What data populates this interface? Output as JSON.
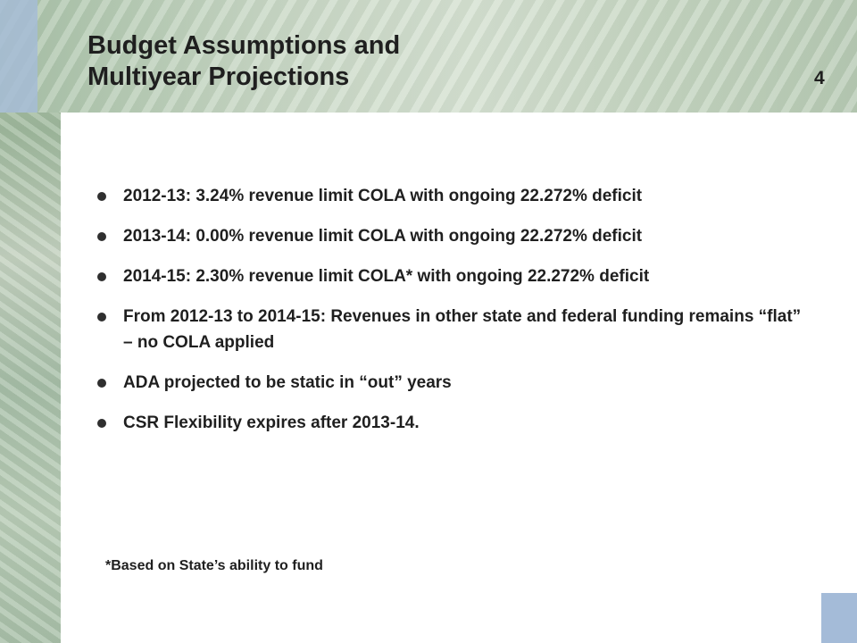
{
  "slide": {
    "title_line1": "Budget Assumptions and",
    "title_line2": "Multiyear Projections",
    "number": "4"
  },
  "bullets": [
    "2012-13:  3.24% revenue limit COLA with ongoing 22.272% deficit",
    "2013-14:   0.00% revenue limit COLA with ongoing 22.272% deficit",
    "2014-15:  2.30% revenue limit COLA* with ongoing 22.272% deficit",
    "From 2012-13 to 2014-15: Revenues in other state and federal funding remains “flat” – no COLA applied",
    "ADA projected to be static in “out” years",
    "CSR Flexibility expires after 2013-14."
  ],
  "footnote": "*Based on State’s ability to fund",
  "colors": {
    "background_green": "#b7cab4",
    "accent_blue": "#a6bcd6",
    "text": "#1f1f1f"
  }
}
